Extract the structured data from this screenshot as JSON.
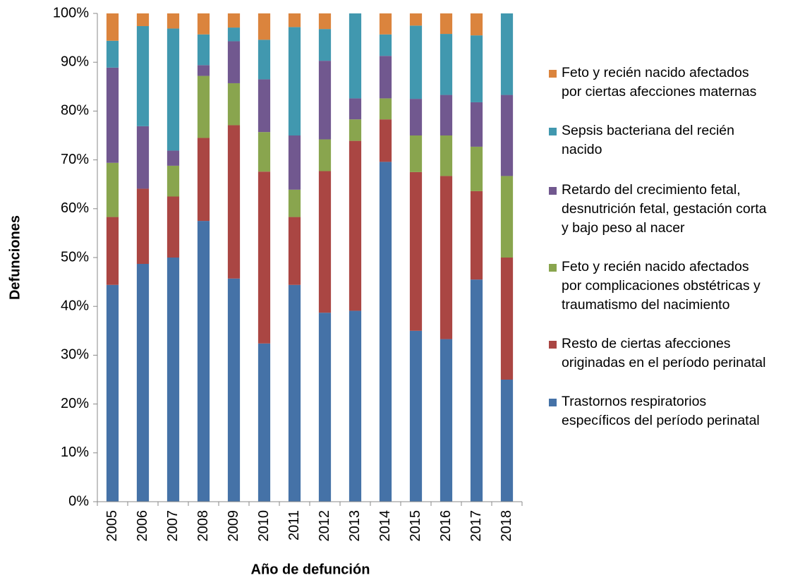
{
  "chart_data": {
    "type": "stacked_bar",
    "x_label": "Año de defunción",
    "y_label": "Defunciones",
    "categories": [
      "2005",
      "2006",
      "2007",
      "2008",
      "2009",
      "2010",
      "2011",
      "2012",
      "2013",
      "2014",
      "2015",
      "2016",
      "2017",
      "2018"
    ],
    "series": [
      {
        "name": "Trastornos respiratorios\nespecíficos del período perinatal",
        "color": "#4572A7",
        "values": [
          44.4,
          48.7,
          50,
          57.5,
          45.7,
          32.4,
          44.4,
          38.7,
          39.1,
          69.6,
          35,
          33.3,
          45.5,
          25
        ]
      },
      {
        "name": "Resto de ciertas afecciones\noriginadas en el período perinatal",
        "color": "#AA4643",
        "values": [
          13.9,
          15.4,
          12.5,
          17,
          31.4,
          35.2,
          13.9,
          29,
          34.8,
          8.7,
          32.5,
          33.4,
          18.1,
          25
        ]
      },
      {
        "name": "Feto y recién nacido afectados\npor complicaciones obstétricas y\ntraumatismo del nacimiento",
        "color": "#89A54E",
        "values": [
          11.1,
          0,
          6.3,
          12.7,
          8.6,
          8.1,
          5.6,
          6.5,
          4.4,
          4.3,
          7.5,
          8.3,
          9.1,
          16.7
        ]
      },
      {
        "name": "Retardo del crecimiento fetal,\ndesnutrición fetal, gestación corta\ny bajo peso al nacer",
        "color": "#71588F",
        "values": [
          19.5,
          12.8,
          3.1,
          2.2,
          8.6,
          10.8,
          11.1,
          16.1,
          4.3,
          8.7,
          7.5,
          8.3,
          9.1,
          16.6
        ]
      },
      {
        "name": "Sepsis bacteriana del recién\nnacido",
        "color": "#4198AF",
        "values": [
          5.5,
          20.5,
          25,
          6.3,
          2.8,
          8.1,
          22.2,
          6.5,
          17.4,
          4.4,
          15,
          12.5,
          13.7,
          16.7
        ]
      },
      {
        "name": "Feto y recién nacido afectados\npor ciertas afecciones maternas",
        "color": "#DB843D",
        "values": [
          5.6,
          2.6,
          3.1,
          4.3,
          2.9,
          5.4,
          2.8,
          3.2,
          0,
          4.3,
          2.5,
          4.2,
          4.5,
          0
        ]
      }
    ],
    "ylim": [
      0,
      100
    ],
    "yticks": [
      {
        "value": 0,
        "label": "0%"
      },
      {
        "value": 10,
        "label": "10%"
      },
      {
        "value": 20,
        "label": "20%"
      },
      {
        "value": 30,
        "label": "30%"
      },
      {
        "value": 40,
        "label": "40%"
      },
      {
        "value": 50,
        "label": "50%"
      },
      {
        "value": 60,
        "label": "60%"
      },
      {
        "value": 70,
        "label": "70%"
      },
      {
        "value": 80,
        "label": "80%"
      },
      {
        "value": 90,
        "label": "90%"
      },
      {
        "value": 100,
        "label": "100%"
      }
    ],
    "legend": "right"
  }
}
